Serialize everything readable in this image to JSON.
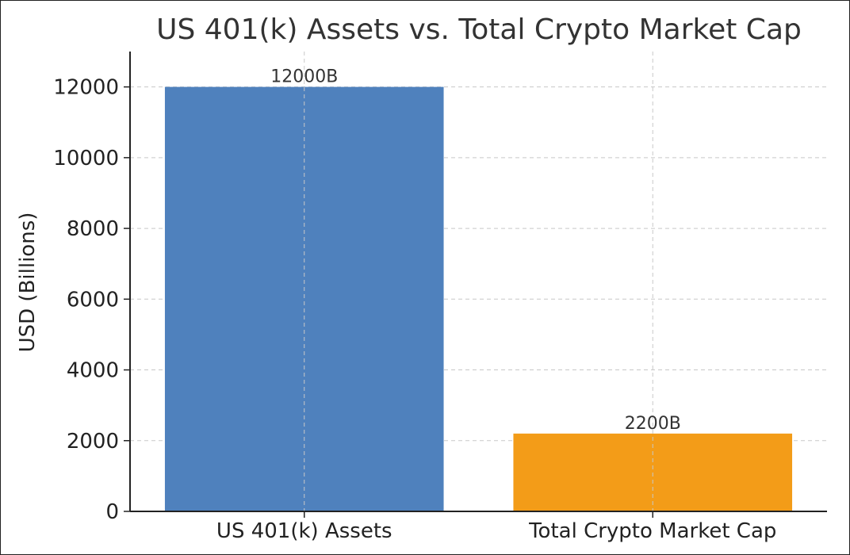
{
  "chart_data": {
    "type": "bar",
    "title": "US 401(k) Assets vs. Total Crypto Market Cap",
    "xlabel": "",
    "ylabel": "USD (Billions)",
    "categories": [
      "US 401(k) Assets",
      "Total Crypto Market Cap"
    ],
    "values": [
      12000,
      2200
    ],
    "data_labels": [
      "12000B",
      "2200B"
    ],
    "colors": [
      "#4f81bd",
      "#f39c18"
    ],
    "ylim": [
      0,
      13000
    ],
    "yticks": [
      0,
      2000,
      4000,
      6000,
      8000,
      10000,
      12000
    ],
    "ytick_labels": [
      "0",
      "2000",
      "4000",
      "6000",
      "8000",
      "10000",
      "12000"
    ],
    "grid": true,
    "grid_style": "dashed"
  }
}
